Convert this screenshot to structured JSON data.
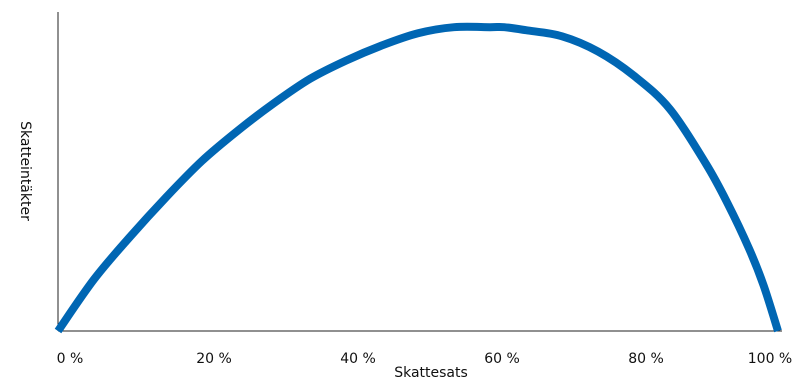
{
  "chart_data": {
    "type": "line",
    "title": "",
    "xlabel": "Skattesats",
    "ylabel": "Skatteintäkter",
    "x_ticks": [
      "0 %",
      "20 %",
      "40 %",
      "60 %",
      "80 %",
      "100 %"
    ],
    "xlim": [
      0,
      100
    ],
    "ylim": [
      0,
      1.05
    ],
    "y_ticks_shown": false,
    "grid": false,
    "legend": "none",
    "line_color": "#0066b3",
    "series": [
      {
        "x": [
          0,
          5,
          10,
          15,
          20,
          25,
          30,
          35,
          40,
          45,
          50,
          55,
          60,
          62,
          65,
          70,
          75,
          80,
          85,
          90,
          93,
          96,
          98,
          100
        ],
        "y": [
          0,
          0.17,
          0.31,
          0.44,
          0.56,
          0.66,
          0.75,
          0.83,
          0.89,
          0.94,
          0.98,
          1.0,
          1.0,
          1.0,
          0.99,
          0.97,
          0.92,
          0.84,
          0.73,
          0.55,
          0.42,
          0.27,
          0.15,
          0
        ]
      }
    ]
  }
}
